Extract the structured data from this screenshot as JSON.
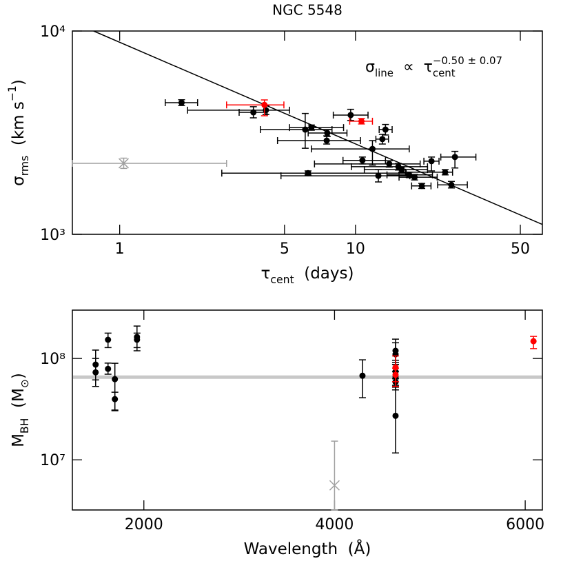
{
  "chart_data": [
    {
      "type": "scatter",
      "title": "NGC 5548",
      "xlabel": [
        {
          "text": "τ"
        },
        {
          "text": "cent",
          "sub": true
        },
        {
          "text": "  (days)"
        }
      ],
      "ylabel": [
        {
          "text": "σ"
        },
        {
          "text": "rms",
          "sub": true
        },
        {
          "text": "  (km s"
        },
        {
          "text": "−1",
          "sup": true
        },
        {
          "text": ")"
        }
      ],
      "annotation": [
        {
          "text": "σ"
        },
        {
          "text": "line",
          "sub": true
        },
        {
          "text": "  ∝  τ"
        },
        {
          "text": "cent",
          "sub": true
        },
        {
          "text": "−0.50 ± 0.07",
          "sup": true
        }
      ],
      "xlog": true,
      "ylog": true,
      "xlim": [
        0.63,
        62
      ],
      "ylim": [
        1000,
        10000
      ],
      "xticks": [
        1,
        5,
        10,
        50
      ],
      "yticks": [
        {
          "value": 1000,
          "label": "10³"
        },
        {
          "value": 10000,
          "label": "10⁴"
        }
      ],
      "fit": {
        "x": [
          0.775,
          62
        ],
        "values": [
          10000,
          1118
        ],
        "color": "#000000"
      },
      "series": [
        {
          "color": "#000000",
          "marker": "circle",
          "x": [
            1.83,
            3.69,
            4.17,
            6.12,
            6.5,
            7.59,
            7.55,
            9.54,
            13.4,
            13.0,
            11.8,
            10.7,
            13.9,
            15.2,
            15.7,
            12.5,
            16.9,
            17.8,
            19.1,
            21.0,
            24.0,
            26.4,
            25.5,
            6.29
          ],
          "values": [
            4440,
            3980,
            4080,
            3275,
            3350,
            3150,
            2890,
            3860,
            3275,
            2940,
            2630,
            2310,
            2220,
            2150,
            2080,
            1940,
            1960,
            1910,
            1730,
            2290,
            2020,
            2400,
            1750,
            2000
          ],
          "x_low": [
            1.56,
            3.21,
            1.94,
            3.95,
            5.25,
            6.3,
            4.67,
            8.05,
            12.6,
            12.2,
            6.5,
            8.85,
            6.7,
            9.6,
            10.9,
            4.83,
            13.6,
            15.3,
            17.3,
            19.5,
            16.3,
            23.0,
            22.3,
            2.71
          ],
          "x_high": [
            2.14,
            4.22,
            5.25,
            7.95,
            8.9,
            9.2,
            10.5,
            11.3,
            14.3,
            13.8,
            16.9,
            13.4,
            18.8,
            20.2,
            20.2,
            17.0,
            21.2,
            22.2,
            20.9,
            22.6,
            25.8,
            32.4,
            29.8,
            16.4
          ],
          "y_low": [
            4300,
            3740,
            3880,
            2650,
            3250,
            3030,
            2780,
            3630,
            3080,
            2780,
            2190,
            2220,
            2140,
            2070,
            2020,
            1810,
            1900,
            1850,
            1680,
            2050,
            1960,
            2120,
            1690,
            1960
          ],
          "y_high": [
            4590,
            4240,
            4280,
            3930,
            3450,
            3270,
            3050,
            4120,
            3470,
            3100,
            2890,
            2400,
            2300,
            2230,
            2140,
            2080,
            2020,
            1970,
            1780,
            2400,
            2080,
            2560,
            1820,
            2050
          ]
        },
        {
          "color": "#ff0000",
          "marker": "circle",
          "x": [
            4.11,
            10.6
          ],
          "values": [
            4330,
            3600
          ],
          "x_low": [
            2.84,
            9.45
          ],
          "x_high": [
            4.97,
            11.8
          ],
          "y_low": [
            3830,
            3490
          ],
          "y_high": [
            4580,
            3710
          ]
        },
        {
          "color": "#a0a0a0",
          "marker": "x",
          "x": [
            1.04
          ],
          "values": [
            2235
          ],
          "x_low": [
            0.63
          ],
          "x_high": [
            2.84
          ],
          "y_low": [
            2110
          ],
          "y_high": [
            2370
          ]
        }
      ]
    },
    {
      "type": "scatter",
      "xlabel": [
        {
          "text": "Wavelength  (Å)"
        }
      ],
      "ylabel": [
        {
          "text": "M"
        },
        {
          "text": "BH",
          "sub": true
        },
        {
          "text": "  (M"
        },
        {
          "text": "⊙",
          "sub": true
        },
        {
          "text": ")"
        }
      ],
      "xlog": false,
      "ylog": true,
      "xlim": [
        1250,
        6180
      ],
      "ylim": [
        3200000,
        300000000
      ],
      "xticks": [
        2000,
        4000,
        6000
      ],
      "yticks": [
        {
          "value": 10000000,
          "label": "10⁷"
        },
        {
          "value": 100000000,
          "label": "10⁸"
        }
      ],
      "hline": {
        "value": 65500000,
        "color": "#c8c8c8"
      },
      "series": [
        {
          "color": "#000000",
          "marker": "circle",
          "x": [
            1494,
            1494,
            1624,
            1624,
            1696,
            1696,
            1928,
            1928,
            4293,
            4640,
            4640,
            4640,
            4640,
            4640,
            4640
          ],
          "values": [
            87000000,
            73000000,
            153000000,
            79000000,
            62500000,
            39700000,
            163000000,
            153000000,
            67600000,
            119000000,
            110000000,
            74300000,
            65500000,
            58700000,
            27200000
          ],
          "y_low": [
            61500000,
            53000000,
            128000000,
            70000000,
            31000000,
            30500000,
            119000000,
            128000000,
            41000000,
            87000000,
            74300000,
            63000000,
            52000000,
            49000000,
            11700000
          ],
          "y_high": [
            121000000,
            100000000,
            178000000,
            90000000,
            89600000,
            46500000,
            209000000,
            178000000,
            97000000,
            155000000,
            143000000,
            87000000,
            96000000,
            91000000,
            54300000
          ]
        },
        {
          "color": "#ff0000",
          "marker": "circle",
          "x": [
            4640,
            4640,
            6087
          ],
          "values": [
            81600000,
            69000000,
            148000000
          ],
          "y_low": [
            53000000,
            59000000,
            125000000
          ],
          "y_high": [
            106000000,
            80000000,
            165000000
          ]
        },
        {
          "color": "#a0a0a0",
          "marker": "x",
          "x": [
            4000
          ],
          "values": [
            5600000
          ],
          "y_low": [
            3200000
          ],
          "y_high": [
            15300000
          ]
        }
      ]
    }
  ]
}
